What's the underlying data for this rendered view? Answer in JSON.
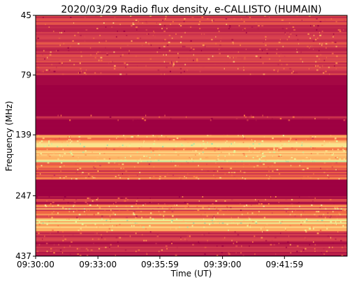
{
  "chart_data": {
    "type": "heatmap",
    "title": "2020/03/29  Radio flux density, e-CALLISTO (HUMAIN)",
    "xlabel": "Time (UT)",
    "ylabel": "Frequency (MHz)",
    "x_ticks": [
      "09:30:00",
      "09:33:00",
      "09:35:59",
      "09:39:00",
      "09:41:59"
    ],
    "y_ticks": [
      "45",
      "79",
      "139",
      "247",
      "437"
    ],
    "x_range": [
      "09:30:00",
      "09:45:00"
    ],
    "y_range": [
      45,
      437
    ],
    "colormap": "Spectral",
    "bands": [
      {
        "from": 45,
        "to": 79,
        "intensity": 0.18,
        "texture": "speckled"
      },
      {
        "from": 79,
        "to": 87,
        "intensity": 0.02,
        "texture": "flat"
      },
      {
        "from": 87,
        "to": 115,
        "intensity": 0.0,
        "texture": "flat"
      },
      {
        "from": 115,
        "to": 122,
        "intensity": 0.08,
        "texture": "speckled"
      },
      {
        "from": 122,
        "to": 139,
        "intensity": 0.0,
        "texture": "flat"
      },
      {
        "from": 139,
        "to": 165,
        "intensity": 0.55,
        "texture": "striped"
      },
      {
        "from": 165,
        "to": 180,
        "intensity": 0.7,
        "texture": "striped"
      },
      {
        "from": 180,
        "to": 192,
        "intensity": 0.3,
        "texture": "speckled"
      },
      {
        "from": 192,
        "to": 205,
        "intensity": 0.2,
        "texture": "speckled"
      },
      {
        "from": 205,
        "to": 212,
        "intensity": 0.45,
        "texture": "striped"
      },
      {
        "from": 212,
        "to": 248,
        "intensity": 0.0,
        "texture": "flat"
      },
      {
        "from": 248,
        "to": 265,
        "intensity": 0.12,
        "texture": "speckled"
      },
      {
        "from": 265,
        "to": 285,
        "intensity": 0.3,
        "texture": "striped"
      },
      {
        "from": 285,
        "to": 310,
        "intensity": 0.4,
        "texture": "striped"
      },
      {
        "from": 310,
        "to": 330,
        "intensity": 0.65,
        "texture": "striped"
      },
      {
        "from": 330,
        "to": 345,
        "intensity": 0.55,
        "texture": "speckled"
      },
      {
        "from": 345,
        "to": 380,
        "intensity": 0.18,
        "texture": "speckled"
      },
      {
        "from": 380,
        "to": 437,
        "intensity": 0.1,
        "texture": "speckled"
      }
    ],
    "colors": {
      "low": "#9e0142",
      "mid_low": "#d53e4f",
      "mid": "#f46d43",
      "mid_high": "#fdae61",
      "high": "#fee08b",
      "peak": "#e6f598",
      "max": "#abdda4"
    }
  }
}
